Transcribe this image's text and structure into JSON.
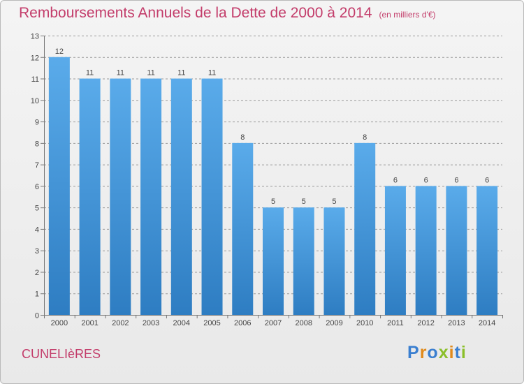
{
  "header": {
    "title": "Remboursements Annuels de la Dette de 2000 à 2014",
    "subtitle": "(en milliers d'€)"
  },
  "commune": "CUNELIèRES",
  "brand": {
    "name": "Proxiti",
    "letters": [
      "P",
      "r",
      "o",
      "x",
      "i",
      "t",
      "i"
    ],
    "letter_colors": [
      "#3a7fd0",
      "#e08a1c",
      "#3a7fd0",
      "#8bbf2a",
      "#e08a1c",
      "#3a7fd0",
      "#8bbf2a"
    ]
  },
  "colors": {
    "bar_light": "#5aabea",
    "bar_dark": "#2e7dc2",
    "grid": "#9a9a9a",
    "title": "#c33c6a"
  },
  "chart_data": {
    "type": "bar",
    "categories": [
      "2000",
      "2001",
      "2002",
      "2003",
      "2004",
      "2005",
      "2006",
      "2007",
      "2008",
      "2009",
      "2010",
      "2011",
      "2012",
      "2013",
      "2014"
    ],
    "values": [
      12,
      11,
      11,
      11,
      11,
      11,
      8,
      5,
      5,
      5,
      8,
      6,
      6,
      6,
      6
    ],
    "data_labels": [
      "12",
      "11",
      "11",
      "11",
      "11",
      "11",
      "8",
      "5",
      "5",
      "5",
      "8",
      "6",
      "6",
      "6",
      "6"
    ],
    "ylim": [
      0,
      13
    ],
    "yticks": [
      0,
      1,
      2,
      3,
      4,
      5,
      6,
      7,
      8,
      9,
      10,
      11,
      12,
      13
    ],
    "grid": true,
    "legend": "none"
  }
}
